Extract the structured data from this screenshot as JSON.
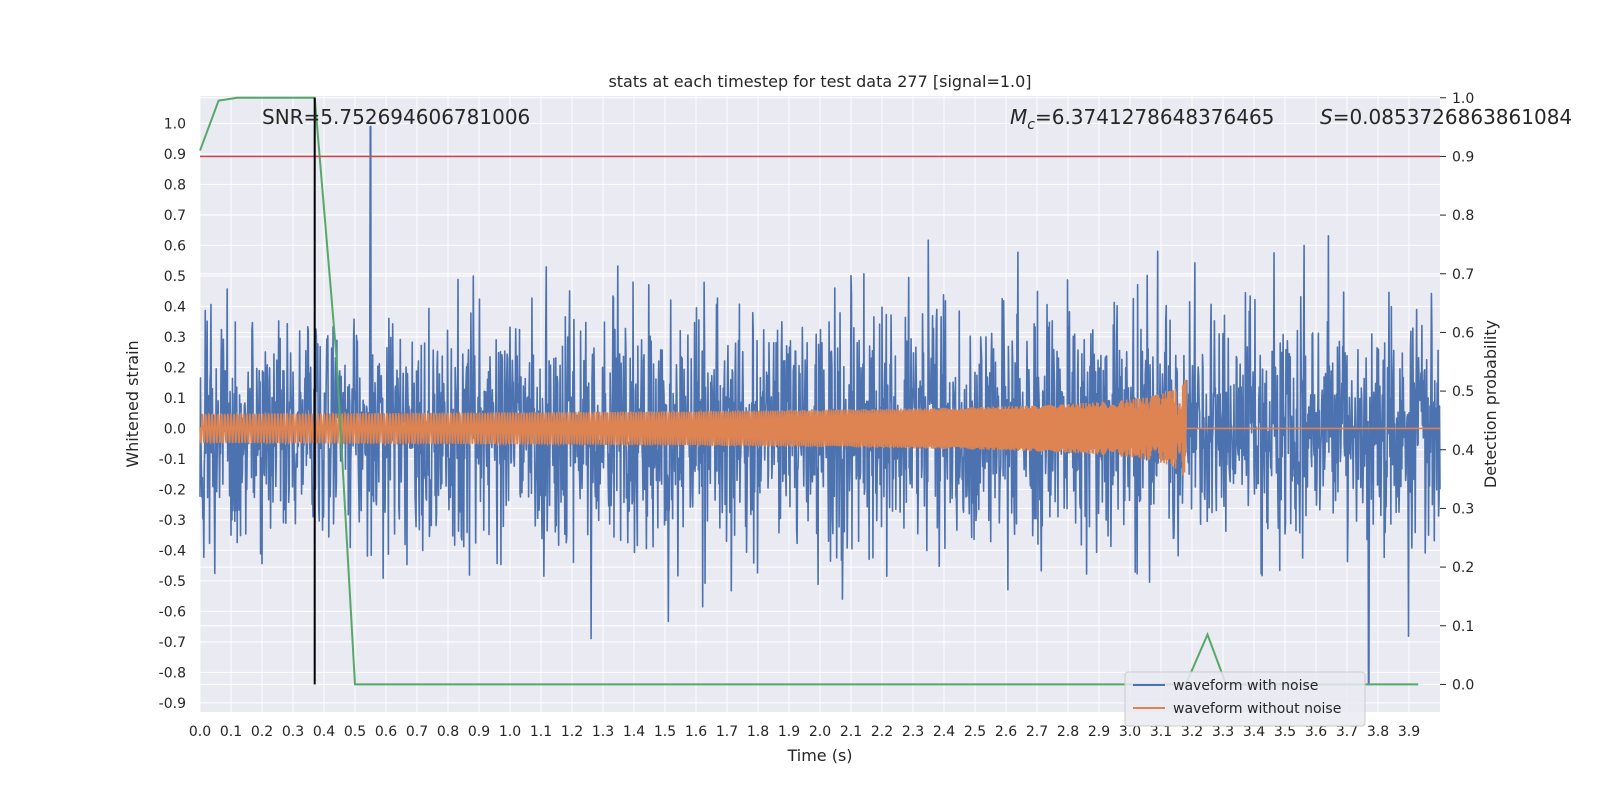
{
  "chart_data": {
    "type": "line",
    "title": "stats at each timestep for test data 277 [signal=1.0]",
    "xlabel": "Time (s)",
    "ylabel_left": "Whitened strain",
    "ylabel_right": "Detection probability",
    "xlim": [
      0.0,
      4.0
    ],
    "ylim_left": [
      -0.93,
      1.09
    ],
    "ylim_right": [
      -0.047,
      1.003
    ],
    "x_ticks": [
      0.0,
      0.1,
      0.2,
      0.3,
      0.4,
      0.5,
      0.6,
      0.7,
      0.8,
      0.9,
      1.0,
      1.1,
      1.2,
      1.3,
      1.4,
      1.5,
      1.6,
      1.7,
      1.8,
      1.9,
      2.0,
      2.1,
      2.2,
      2.3,
      2.4,
      2.5,
      2.6,
      2.7,
      2.8,
      2.9,
      3.0,
      3.1,
      3.2,
      3.3,
      3.4,
      3.5,
      3.6,
      3.7,
      3.8,
      3.9
    ],
    "y_ticks_left": [
      -0.9,
      -0.8,
      -0.7,
      -0.6,
      -0.5,
      -0.4,
      -0.3,
      -0.2,
      -0.1,
      0.0,
      0.1,
      0.2,
      0.3,
      0.4,
      0.5,
      0.6,
      0.7,
      0.8,
      0.9,
      1.0
    ],
    "y_ticks_right": [
      0.0,
      0.1,
      0.2,
      0.3,
      0.4,
      0.5,
      0.6,
      0.7,
      0.8,
      0.9,
      1.0
    ],
    "grid": true,
    "legend_position": "lower-right",
    "annotations": {
      "snr_text": "SNR=5.752694606781006",
      "mc_symbol": "M",
      "mc_subscript": "c",
      "mc_value": "=6.3741278648376465",
      "s_symbol": "S",
      "s_value": "=0.0853726863861084"
    },
    "series": [
      {
        "name": "waveform with noise",
        "color": "#4c72b0",
        "axis": "left",
        "description_values": {
          "t_start": 0.0,
          "t_end": 4.0,
          "envelope_approx": 0.45,
          "max_peak": 0.99,
          "max_peak_t": 0.55,
          "min_peak": -0.84,
          "min_peak_t": 3.77
        }
      },
      {
        "name": "waveform without noise",
        "color": "#dd8452",
        "axis": "left",
        "chirp": {
          "t_start": 0.0,
          "t_merge": 3.18,
          "t_end": 4.0,
          "amp_start": 0.03,
          "amp_peak": 0.17,
          "amp_min_peak": -0.11
        }
      },
      {
        "name": "",
        "color": "#55a868",
        "axis": "right",
        "x": [
          0.0,
          0.06,
          0.12,
          0.18,
          0.25,
          0.31,
          0.37,
          0.44,
          0.5,
          0.56,
          1.0,
          2.0,
          3.0,
          3.18,
          3.25,
          3.31,
          3.5,
          3.93
        ],
        "y": [
          0.91,
          0.995,
          1.0,
          1.0,
          1.0,
          1.0,
          1.0,
          0.56,
          0.0,
          0.0,
          0.0,
          0.0,
          0.0,
          0.0,
          0.085,
          0.0,
          0.0,
          0.0
        ]
      },
      {
        "name": "",
        "color": "#c44e52",
        "axis": "right",
        "type": "hline",
        "y": 0.9
      },
      {
        "name": "",
        "color": "#000000",
        "axis": "right",
        "type": "vline",
        "x": 0.37,
        "y_range": [
          0.0,
          1.0
        ]
      }
    ]
  }
}
